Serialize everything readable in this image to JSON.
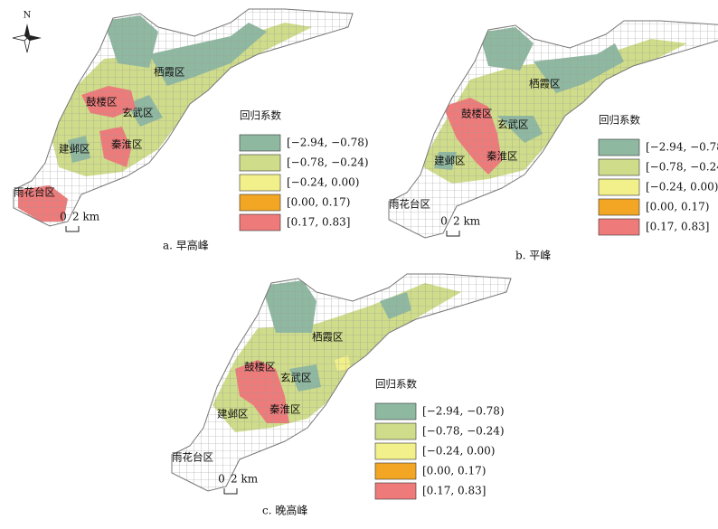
{
  "north": "N",
  "scale": {
    "zero": "0",
    "label": "2 km"
  },
  "legend": {
    "title": "回归系数",
    "items": [
      {
        "label": "[−2.94, −0.78)",
        "color": "#8fb8a1"
      },
      {
        "label": "[−0.78, −0.24)",
        "color": "#cfdc8a"
      },
      {
        "label": "[−0.24, 0.00)",
        "color": "#f2f08a"
      },
      {
        "label": "[0.00, 0.17)",
        "color": "#f2a623"
      },
      {
        "label": "[0.17, 0.83]",
        "color": "#ee7a7a"
      }
    ]
  },
  "panels": [
    {
      "caption": "a. 早高峰",
      "districts": [
        "栖霞区",
        "鼓楼区",
        "玄武区",
        "建邺区",
        "秦淮区",
        "雨花台区"
      ]
    },
    {
      "caption": "b. 平峰",
      "districts": [
        "栖霞区",
        "鼓楼区",
        "玄武区",
        "建邺区",
        "秦淮区",
        "雨花台区"
      ]
    },
    {
      "caption": "c. 晚高峰",
      "districts": [
        "栖霞区",
        "鼓楼区",
        "玄武区",
        "建邺区",
        "秦淮区",
        "雨花台区"
      ]
    }
  ]
}
